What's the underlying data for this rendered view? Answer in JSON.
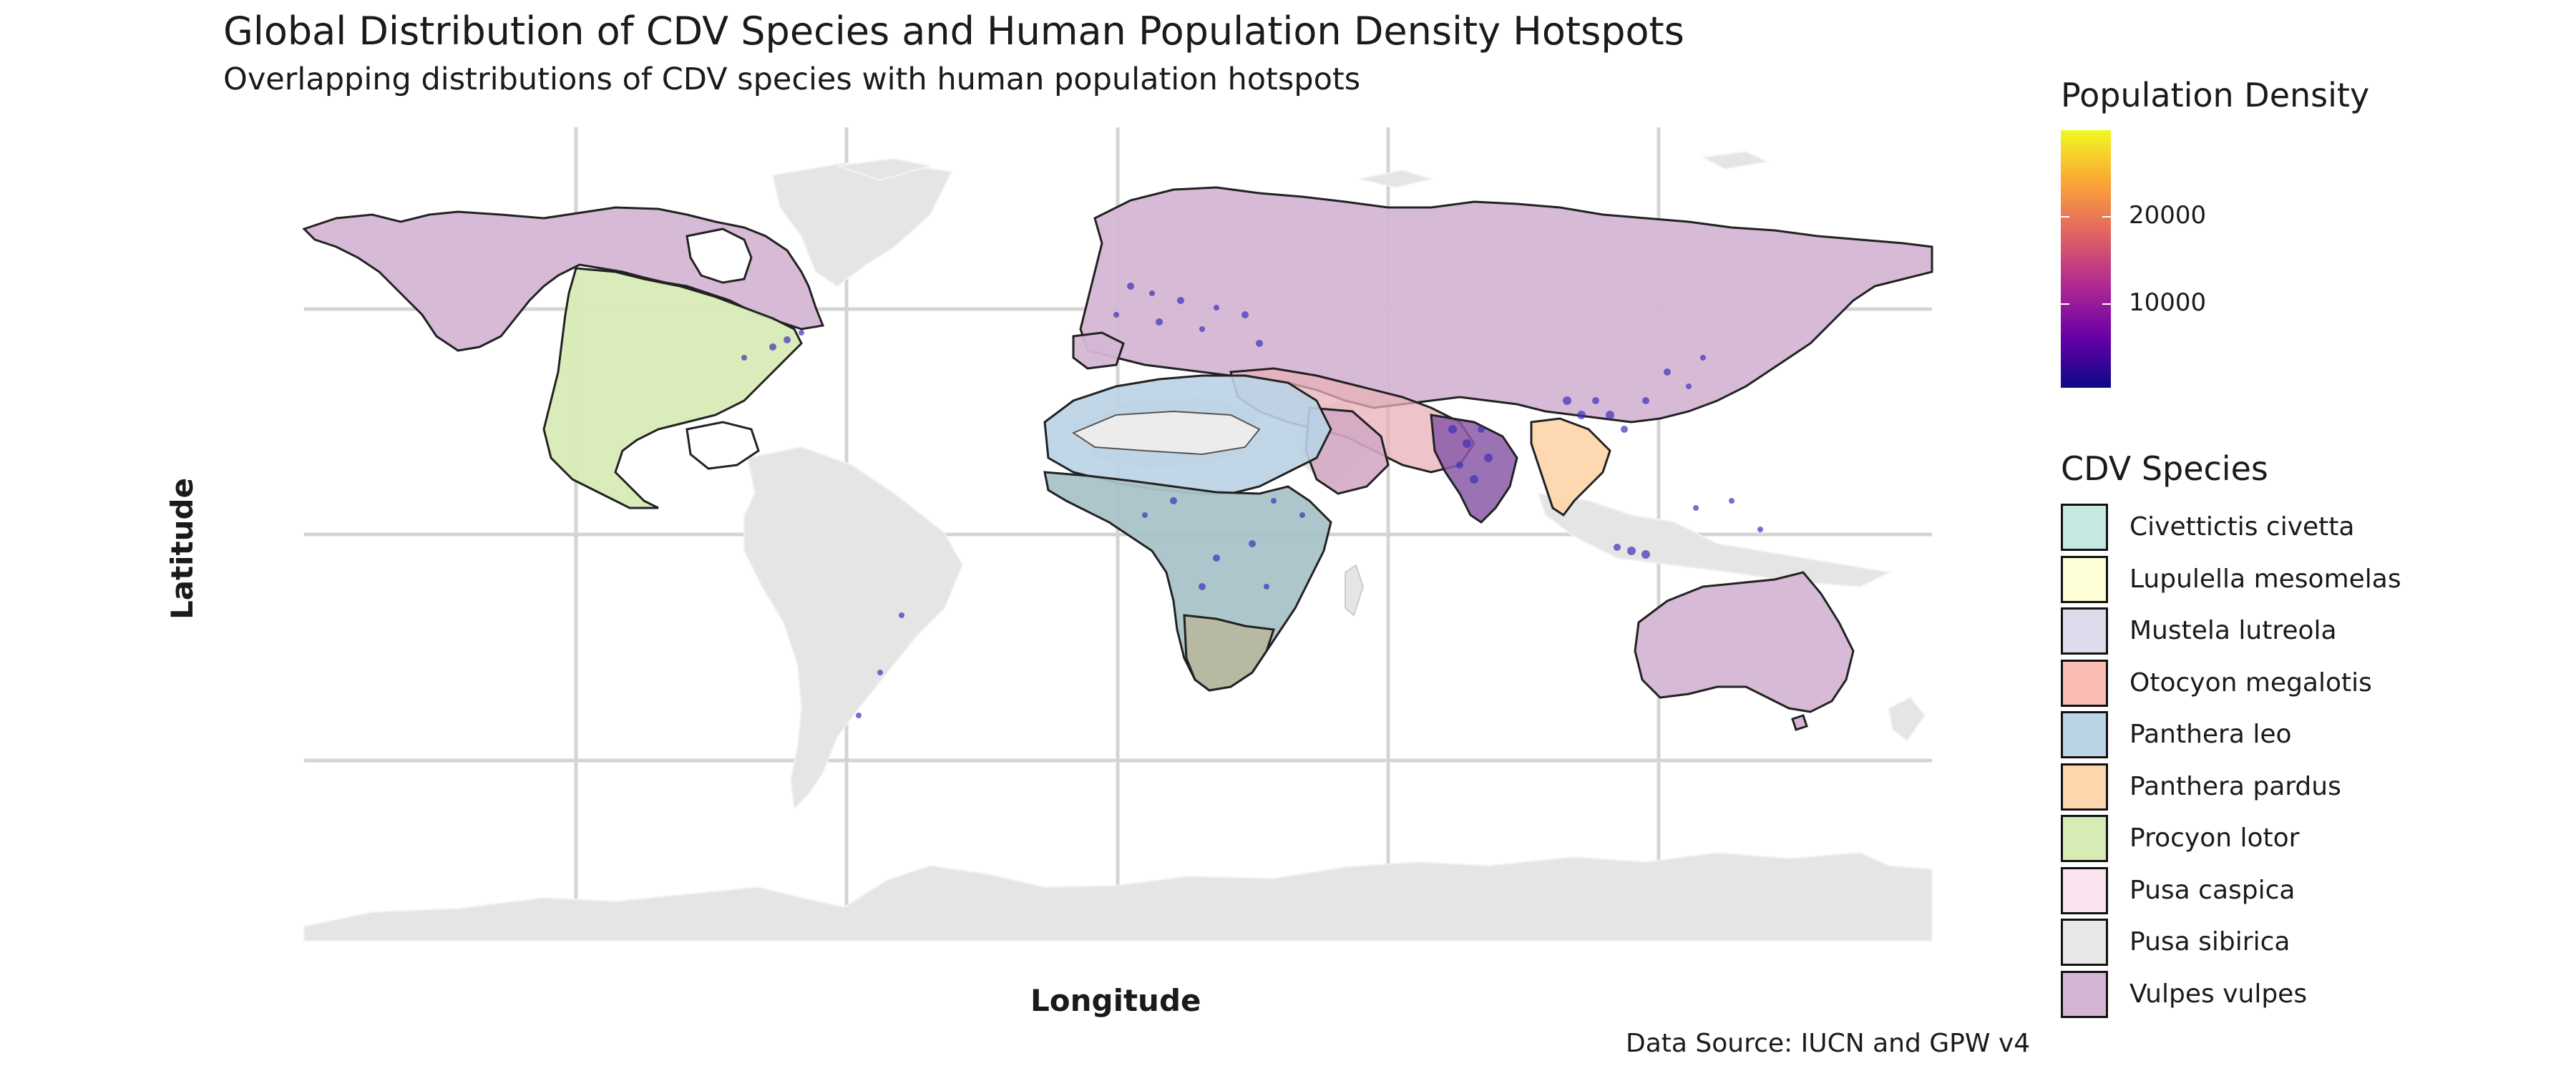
{
  "title": "Global Distribution of CDV Species and Human Population Density Hotspots",
  "subtitle": "Overlapping distributions of CDV species with human population hotspots",
  "axes": {
    "xlabel": "Longitude",
    "ylabel": "Latitude"
  },
  "caption": "Data Source: IUCN and GPW v4",
  "colorbar": {
    "title": "Population Density",
    "ticks": [
      "20000",
      "10000"
    ],
    "tick_values": [
      20000,
      10000
    ],
    "min": 0,
    "max": 30000,
    "palette": "plasma"
  },
  "species_legend": {
    "title": "CDV Species",
    "items": [
      {
        "label": "Civettictis civetta",
        "color": "#c4e9e1"
      },
      {
        "label": "Lupulella mesomelas",
        "color": "#fdfdd6"
      },
      {
        "label": "Mustela lutreola",
        "color": "#dfdbec"
      },
      {
        "label": "Otocyon megalotis",
        "color": "#fbbcb3"
      },
      {
        "label": "Panthera leo",
        "color": "#bad3e5"
      },
      {
        "label": "Panthera pardus",
        "color": "#fdd6ad"
      },
      {
        "label": "Procyon lotor",
        "color": "#d7ebb5"
      },
      {
        "label": "Pusa caspica",
        "color": "#fbe3ef"
      },
      {
        "label": "Pusa sibirica",
        "color": "#e8e8e8"
      },
      {
        "label": "Vulpes vulpes",
        "color": "#d4b6d4"
      }
    ]
  },
  "map_colors": {
    "land": "#e5e5e5",
    "grid": "#d6d6d6",
    "density_points": "#3d2fb8"
  }
}
